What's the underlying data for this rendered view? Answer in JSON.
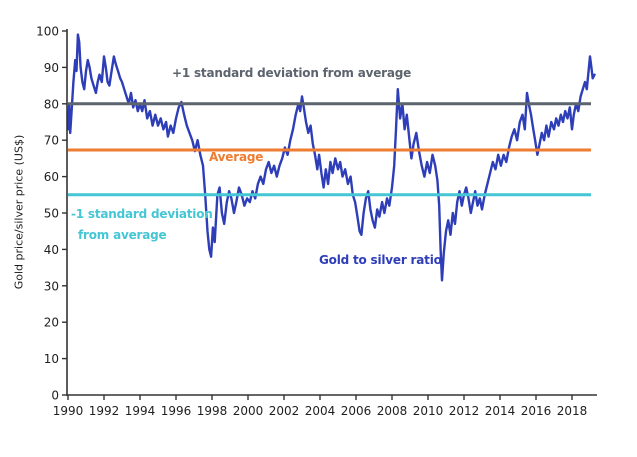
{
  "chart_data": {
    "type": "line",
    "title": "",
    "xlabel": "",
    "ylabel": "Gold price/silver price (US$)",
    "xlim": [
      1990,
      2019.4
    ],
    "ylim": [
      0,
      100
    ],
    "x_ticks": [
      1990,
      1992,
      1994,
      1996,
      1998,
      2000,
      2002,
      2004,
      2006,
      2008,
      2010,
      2012,
      2014,
      2016,
      2018
    ],
    "y_ticks": [
      0,
      10,
      20,
      30,
      40,
      50,
      60,
      70,
      80,
      90,
      100
    ],
    "grid": false,
    "legend": "inline annotations (no legend box)",
    "reference_lines": [
      {
        "name": "plus1sd",
        "label": "+1 standard deviation from average",
        "value": 80,
        "color": "#5C646E"
      },
      {
        "name": "average",
        "label": "Average",
        "value": 67.3,
        "color": "#ED7D31"
      },
      {
        "name": "minus1sd",
        "label": "-1 standard deviation from average",
        "value": 55,
        "color": "#45C6D5",
        "label_lines": [
          "-1 standard deviation",
          "from average"
        ]
      }
    ],
    "series": [
      {
        "name": "Gold to silver ratio",
        "color": "#2E3DB8",
        "points": [
          [
            1990.0,
            73
          ],
          [
            1990.06,
            80
          ],
          [
            1990.12,
            72
          ],
          [
            1990.2,
            78
          ],
          [
            1990.3,
            86
          ],
          [
            1990.4,
            92
          ],
          [
            1990.47,
            89
          ],
          [
            1990.55,
            99
          ],
          [
            1990.62,
            97
          ],
          [
            1990.7,
            90
          ],
          [
            1990.8,
            86
          ],
          [
            1990.9,
            84
          ],
          [
            1991.0,
            89
          ],
          [
            1991.1,
            92
          ],
          [
            1991.2,
            90
          ],
          [
            1991.3,
            87
          ],
          [
            1991.42,
            85
          ],
          [
            1991.55,
            83
          ],
          [
            1991.65,
            86
          ],
          [
            1991.75,
            88
          ],
          [
            1991.88,
            86
          ],
          [
            1992.0,
            93
          ],
          [
            1992.1,
            90
          ],
          [
            1992.2,
            86
          ],
          [
            1992.3,
            85
          ],
          [
            1992.42,
            89
          ],
          [
            1992.55,
            93
          ],
          [
            1992.65,
            91
          ],
          [
            1992.78,
            89
          ],
          [
            1992.9,
            87
          ],
          [
            1993.0,
            86
          ],
          [
            1993.12,
            84
          ],
          [
            1993.25,
            82
          ],
          [
            1993.38,
            80
          ],
          [
            1993.5,
            83
          ],
          [
            1993.62,
            79
          ],
          [
            1993.75,
            81
          ],
          [
            1993.88,
            78
          ],
          [
            1994.0,
            80
          ],
          [
            1994.12,
            78
          ],
          [
            1994.25,
            81
          ],
          [
            1994.4,
            76
          ],
          [
            1994.55,
            78
          ],
          [
            1994.7,
            74
          ],
          [
            1994.85,
            77
          ],
          [
            1995.0,
            74
          ],
          [
            1995.15,
            76
          ],
          [
            1995.3,
            73
          ],
          [
            1995.45,
            75
          ],
          [
            1995.55,
            71
          ],
          [
            1995.7,
            74
          ],
          [
            1995.85,
            72
          ],
          [
            1996.0,
            76
          ],
          [
            1996.15,
            79
          ],
          [
            1996.3,
            80.5
          ],
          [
            1996.45,
            77
          ],
          [
            1996.6,
            74
          ],
          [
            1996.75,
            72
          ],
          [
            1996.9,
            70
          ],
          [
            1997.05,
            67
          ],
          [
            1997.2,
            70
          ],
          [
            1997.35,
            66
          ],
          [
            1997.5,
            63
          ],
          [
            1997.62,
            55
          ],
          [
            1997.75,
            45
          ],
          [
            1997.85,
            40
          ],
          [
            1997.95,
            38
          ],
          [
            1998.05,
            46
          ],
          [
            1998.15,
            42
          ],
          [
            1998.3,
            55
          ],
          [
            1998.42,
            57
          ],
          [
            1998.55,
            50
          ],
          [
            1998.68,
            47
          ],
          [
            1998.82,
            53
          ],
          [
            1998.95,
            56
          ],
          [
            1999.08,
            54
          ],
          [
            1999.22,
            50
          ],
          [
            1999.35,
            53
          ],
          [
            1999.5,
            57
          ],
          [
            1999.65,
            55
          ],
          [
            1999.8,
            52
          ],
          [
            1999.95,
            54
          ],
          [
            2000.1,
            53
          ],
          [
            2000.25,
            56
          ],
          [
            2000.4,
            54
          ],
          [
            2000.55,
            58
          ],
          [
            2000.7,
            60
          ],
          [
            2000.85,
            58
          ],
          [
            2001.0,
            62
          ],
          [
            2001.15,
            64
          ],
          [
            2001.3,
            61
          ],
          [
            2001.45,
            63
          ],
          [
            2001.6,
            60
          ],
          [
            2001.75,
            63
          ],
          [
            2001.9,
            65
          ],
          [
            2002.05,
            68
          ],
          [
            2002.2,
            66
          ],
          [
            2002.35,
            70
          ],
          [
            2002.5,
            73
          ],
          [
            2002.65,
            77
          ],
          [
            2002.8,
            80
          ],
          [
            2002.9,
            78
          ],
          [
            2003.0,
            82
          ],
          [
            2003.1,
            79
          ],
          [
            2003.22,
            75
          ],
          [
            2003.35,
            72
          ],
          [
            2003.48,
            74
          ],
          [
            2003.6,
            69
          ],
          [
            2003.72,
            66
          ],
          [
            2003.85,
            62
          ],
          [
            2003.95,
            66
          ],
          [
            2004.08,
            61
          ],
          [
            2004.2,
            57
          ],
          [
            2004.32,
            62
          ],
          [
            2004.45,
            58
          ],
          [
            2004.58,
            64
          ],
          [
            2004.7,
            61
          ],
          [
            2004.85,
            65
          ],
          [
            2005.0,
            62
          ],
          [
            2005.12,
            64
          ],
          [
            2005.25,
            60
          ],
          [
            2005.4,
            62
          ],
          [
            2005.55,
            58
          ],
          [
            2005.7,
            60
          ],
          [
            2005.82,
            55
          ],
          [
            2005.95,
            53
          ],
          [
            2006.08,
            49
          ],
          [
            2006.2,
            45
          ],
          [
            2006.3,
            44
          ],
          [
            2006.42,
            50
          ],
          [
            2006.55,
            54
          ],
          [
            2006.68,
            56
          ],
          [
            2006.8,
            51
          ],
          [
            2006.92,
            48
          ],
          [
            2007.05,
            46
          ],
          [
            2007.18,
            51
          ],
          [
            2007.3,
            49
          ],
          [
            2007.45,
            53
          ],
          [
            2007.58,
            50
          ],
          [
            2007.72,
            54
          ],
          [
            2007.85,
            52
          ],
          [
            2008.0,
            57
          ],
          [
            2008.12,
            63
          ],
          [
            2008.22,
            73
          ],
          [
            2008.32,
            84
          ],
          [
            2008.45,
            76
          ],
          [
            2008.58,
            80
          ],
          [
            2008.7,
            73
          ],
          [
            2008.82,
            77
          ],
          [
            2008.95,
            71
          ],
          [
            2009.08,
            65
          ],
          [
            2009.2,
            69
          ],
          [
            2009.35,
            72
          ],
          [
            2009.5,
            67
          ],
          [
            2009.65,
            63
          ],
          [
            2009.8,
            60
          ],
          [
            2009.95,
            64
          ],
          [
            2010.1,
            61
          ],
          [
            2010.25,
            66
          ],
          [
            2010.4,
            63
          ],
          [
            2010.52,
            59
          ],
          [
            2010.62,
            52
          ],
          [
            2010.7,
            40
          ],
          [
            2010.78,
            31.5
          ],
          [
            2010.88,
            39
          ],
          [
            2011.0,
            45
          ],
          [
            2011.12,
            48
          ],
          [
            2011.25,
            44
          ],
          [
            2011.38,
            50
          ],
          [
            2011.5,
            47
          ],
          [
            2011.62,
            53
          ],
          [
            2011.75,
            56
          ],
          [
            2011.88,
            52
          ],
          [
            2012.0,
            55
          ],
          [
            2012.12,
            57
          ],
          [
            2012.25,
            54
          ],
          [
            2012.38,
            50
          ],
          [
            2012.5,
            53
          ],
          [
            2012.62,
            56
          ],
          [
            2012.75,
            52
          ],
          [
            2012.88,
            54
          ],
          [
            2013.0,
            51
          ],
          [
            2013.15,
            55
          ],
          [
            2013.3,
            58
          ],
          [
            2013.45,
            61
          ],
          [
            2013.6,
            64
          ],
          [
            2013.75,
            62
          ],
          [
            2013.9,
            66
          ],
          [
            2014.05,
            63
          ],
          [
            2014.2,
            66
          ],
          [
            2014.35,
            64
          ],
          [
            2014.5,
            68
          ],
          [
            2014.65,
            71
          ],
          [
            2014.8,
            73
          ],
          [
            2014.95,
            70
          ],
          [
            2015.1,
            75
          ],
          [
            2015.25,
            77
          ],
          [
            2015.38,
            73
          ],
          [
            2015.5,
            83
          ],
          [
            2015.6,
            80
          ],
          [
            2015.72,
            77
          ],
          [
            2015.85,
            73
          ],
          [
            2015.95,
            70
          ],
          [
            2016.08,
            66
          ],
          [
            2016.2,
            69
          ],
          [
            2016.32,
            72
          ],
          [
            2016.45,
            70
          ],
          [
            2016.58,
            74
          ],
          [
            2016.7,
            71
          ],
          [
            2016.85,
            75
          ],
          [
            2017.0,
            73
          ],
          [
            2017.12,
            76
          ],
          [
            2017.25,
            74
          ],
          [
            2017.38,
            77
          ],
          [
            2017.5,
            75
          ],
          [
            2017.62,
            78
          ],
          [
            2017.75,
            76
          ],
          [
            2017.88,
            79
          ],
          [
            2018.0,
            73
          ],
          [
            2018.1,
            77
          ],
          [
            2018.22,
            80
          ],
          [
            2018.35,
            78
          ],
          [
            2018.48,
            82
          ],
          [
            2018.6,
            84
          ],
          [
            2018.72,
            86
          ],
          [
            2018.82,
            84
          ],
          [
            2018.9,
            88
          ],
          [
            2019.0,
            93
          ],
          [
            2019.08,
            90
          ],
          [
            2019.15,
            87
          ],
          [
            2019.25,
            88
          ]
        ]
      }
    ]
  },
  "colors": {
    "series_blue": "#2E3DB8",
    "plus1sd_gray": "#5C646E",
    "average_orange": "#ED7D31",
    "minus1sd_cyan": "#45C6D5",
    "axis": "#333333",
    "tick_text": "#1f1f1f"
  }
}
